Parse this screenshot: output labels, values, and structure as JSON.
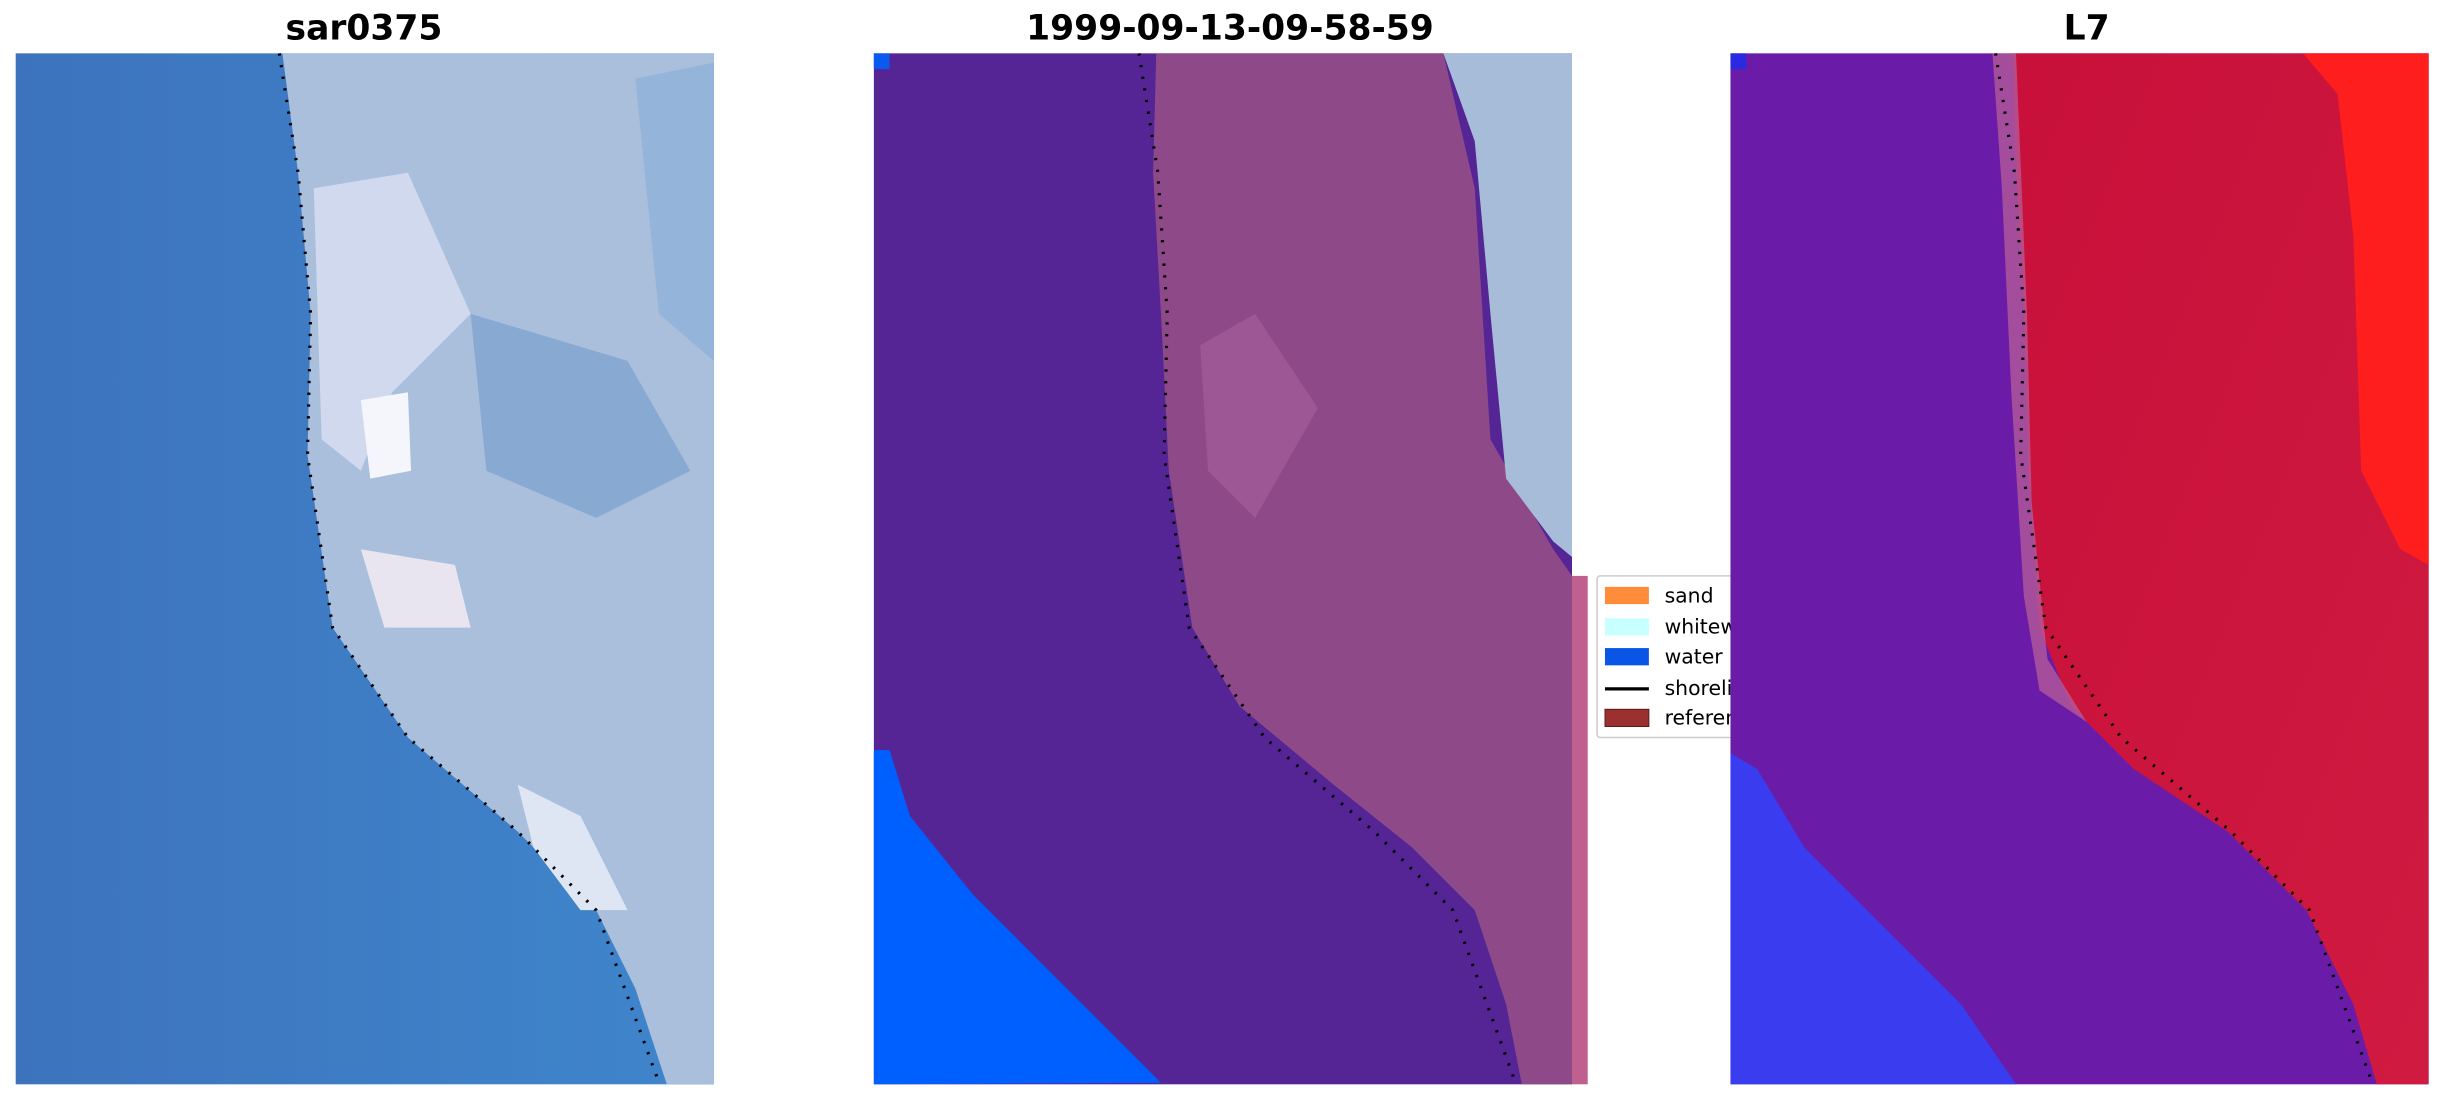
{
  "panels": [
    {
      "title": "sar0375"
    },
    {
      "title": "1999-09-13-09-58-59"
    },
    {
      "title": "L7"
    }
  ],
  "legend": [
    {
      "label": "sand"
    },
    {
      "label": "whitewater"
    },
    {
      "label": "water"
    },
    {
      "label": "shoreline"
    },
    {
      "label": "reference shoreline"
    }
  ]
}
